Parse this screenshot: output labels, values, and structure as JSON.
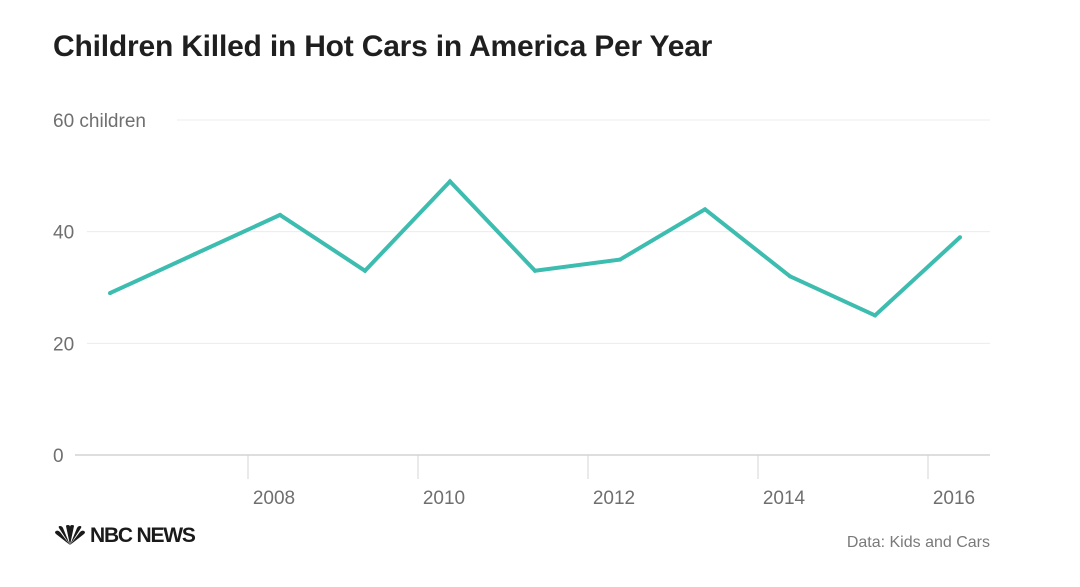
{
  "chart_data": {
    "type": "line",
    "title": "Children Killed in Hot Cars in America Per Year",
    "xlabel": "",
    "ylabel": "",
    "x": [
      2006,
      2007,
      2008,
      2009,
      2010,
      2011,
      2012,
      2013,
      2014,
      2015,
      2016
    ],
    "series": [
      {
        "values": [
          29,
          36,
          43,
          33,
          49,
          33,
          35,
          44,
          32,
          25,
          39
        ]
      }
    ],
    "ylim": [
      0,
      60
    ],
    "y_ticks": [
      0,
      20,
      40,
      60
    ],
    "y_tick_labels": [
      "0",
      "20",
      "40",
      "60 children"
    ],
    "x_ticks": [
      2008,
      2010,
      2012,
      2014,
      2016
    ],
    "x_tick_labels": [
      "2008",
      "2010",
      "2012",
      "2014",
      "2016"
    ],
    "grid": true,
    "line_color": "#3dbcb0"
  },
  "brand": {
    "logo": "NBC NEWS",
    "logo_icon": "nbc-peacock-icon"
  },
  "source": "Data: Kids and Cars"
}
